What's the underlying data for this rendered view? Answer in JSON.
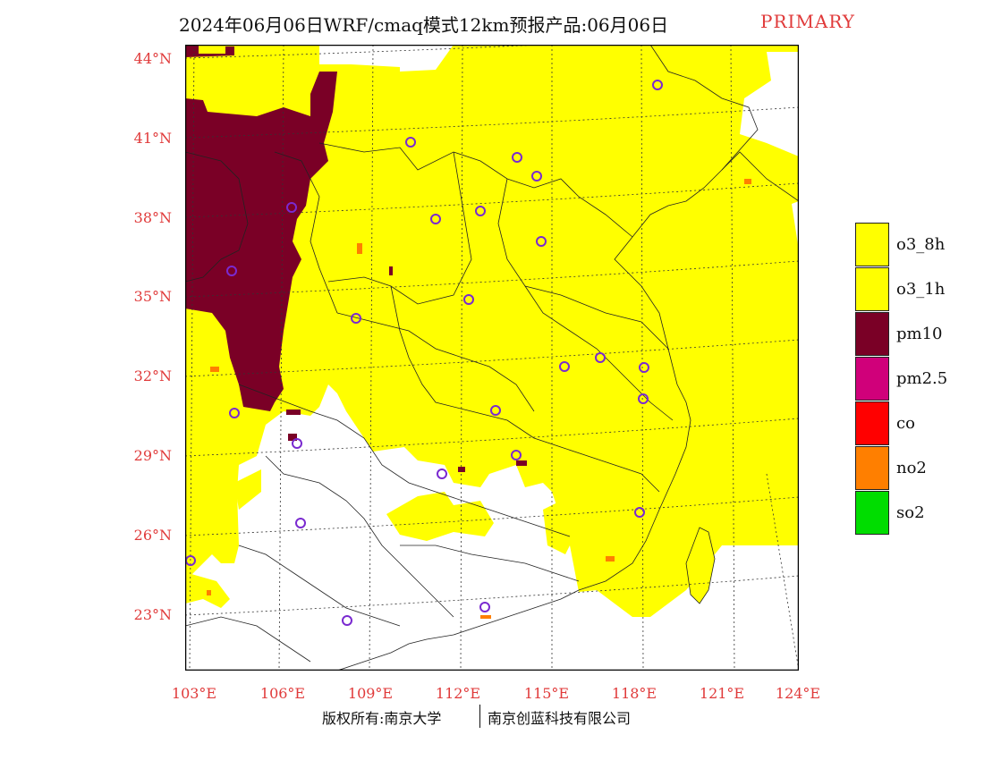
{
  "title": {
    "main": "2024年06月06日WRF/cmaq模式12km预报产品:06月06日",
    "tag": "PRIMARY"
  },
  "axes": {
    "lat_labels": [
      "44°N",
      "41°N",
      "38°N",
      "35°N",
      "32°N",
      "29°N",
      "26°N",
      "23°N"
    ],
    "lon_labels": [
      "103°E",
      "106°E",
      "109°E",
      "112°E",
      "115°E",
      "118°E",
      "121°E",
      "124°E"
    ]
  },
  "legend": {
    "items": [
      {
        "label": "o3_8h",
        "color": "#ffff00"
      },
      {
        "label": "o3_1h",
        "color": "#ffff00"
      },
      {
        "label": "pm10",
        "color": "#7a0026"
      },
      {
        "label": "pm2.5",
        "color": "#d0007a"
      },
      {
        "label": "co",
        "color": "#ff0000"
      },
      {
        "label": "no2",
        "color": "#ff7f00"
      },
      {
        "label": "so2",
        "color": "#00dd00"
      }
    ]
  },
  "footer": {
    "left": "版权所有:南京大学",
    "right": "南京创蓝科技有限公司"
  },
  "colors": {
    "o3": "#ffff00",
    "pm10": "#7a0026",
    "no2": "#ff7f00",
    "site_marker": "#7a2ad0",
    "label_red": "#e03a3a"
  }
}
